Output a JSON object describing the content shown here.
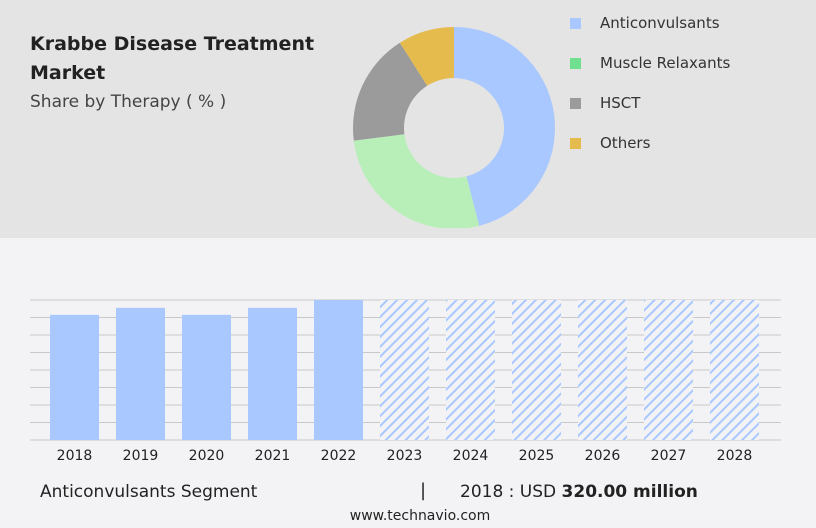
{
  "title": "Krabbe Disease Treatment Market",
  "subtitle": "Share by Therapy ( % )",
  "chart_data": [
    {
      "type": "pie",
      "donut": true,
      "legend_position": "right",
      "series": [
        {
          "name": "Anticonvulsants",
          "value": 46,
          "color": "#a8c8ff"
        },
        {
          "name": "Muscle Relaxants",
          "value": 27,
          "color": "#b8efb8",
          "legend_color": "#6ee08f"
        },
        {
          "name": "HSCT",
          "value": 18,
          "color": "#9b9b9b"
        },
        {
          "name": "Others",
          "value": 9,
          "color": "#e6bb4e"
        }
      ]
    },
    {
      "type": "bar",
      "categories": [
        "2018",
        "2019",
        "2020",
        "2021",
        "2022",
        "2023",
        "2024",
        "2025",
        "2026",
        "2027",
        "2028"
      ],
      "values": [
        320,
        338,
        320,
        338,
        358,
        null,
        null,
        null,
        null,
        null,
        null
      ],
      "forecast_from": "2023",
      "ylim": [
        0,
        358
      ],
      "grid": true,
      "color": "#a8c8ff",
      "ylabel": "",
      "xlabel": ""
    }
  ],
  "footer": {
    "segment": "Anticonvulsants Segment",
    "separator": "|",
    "year_label": "2018 : USD",
    "value": "320.00 million",
    "site": "www.technavio.com"
  }
}
